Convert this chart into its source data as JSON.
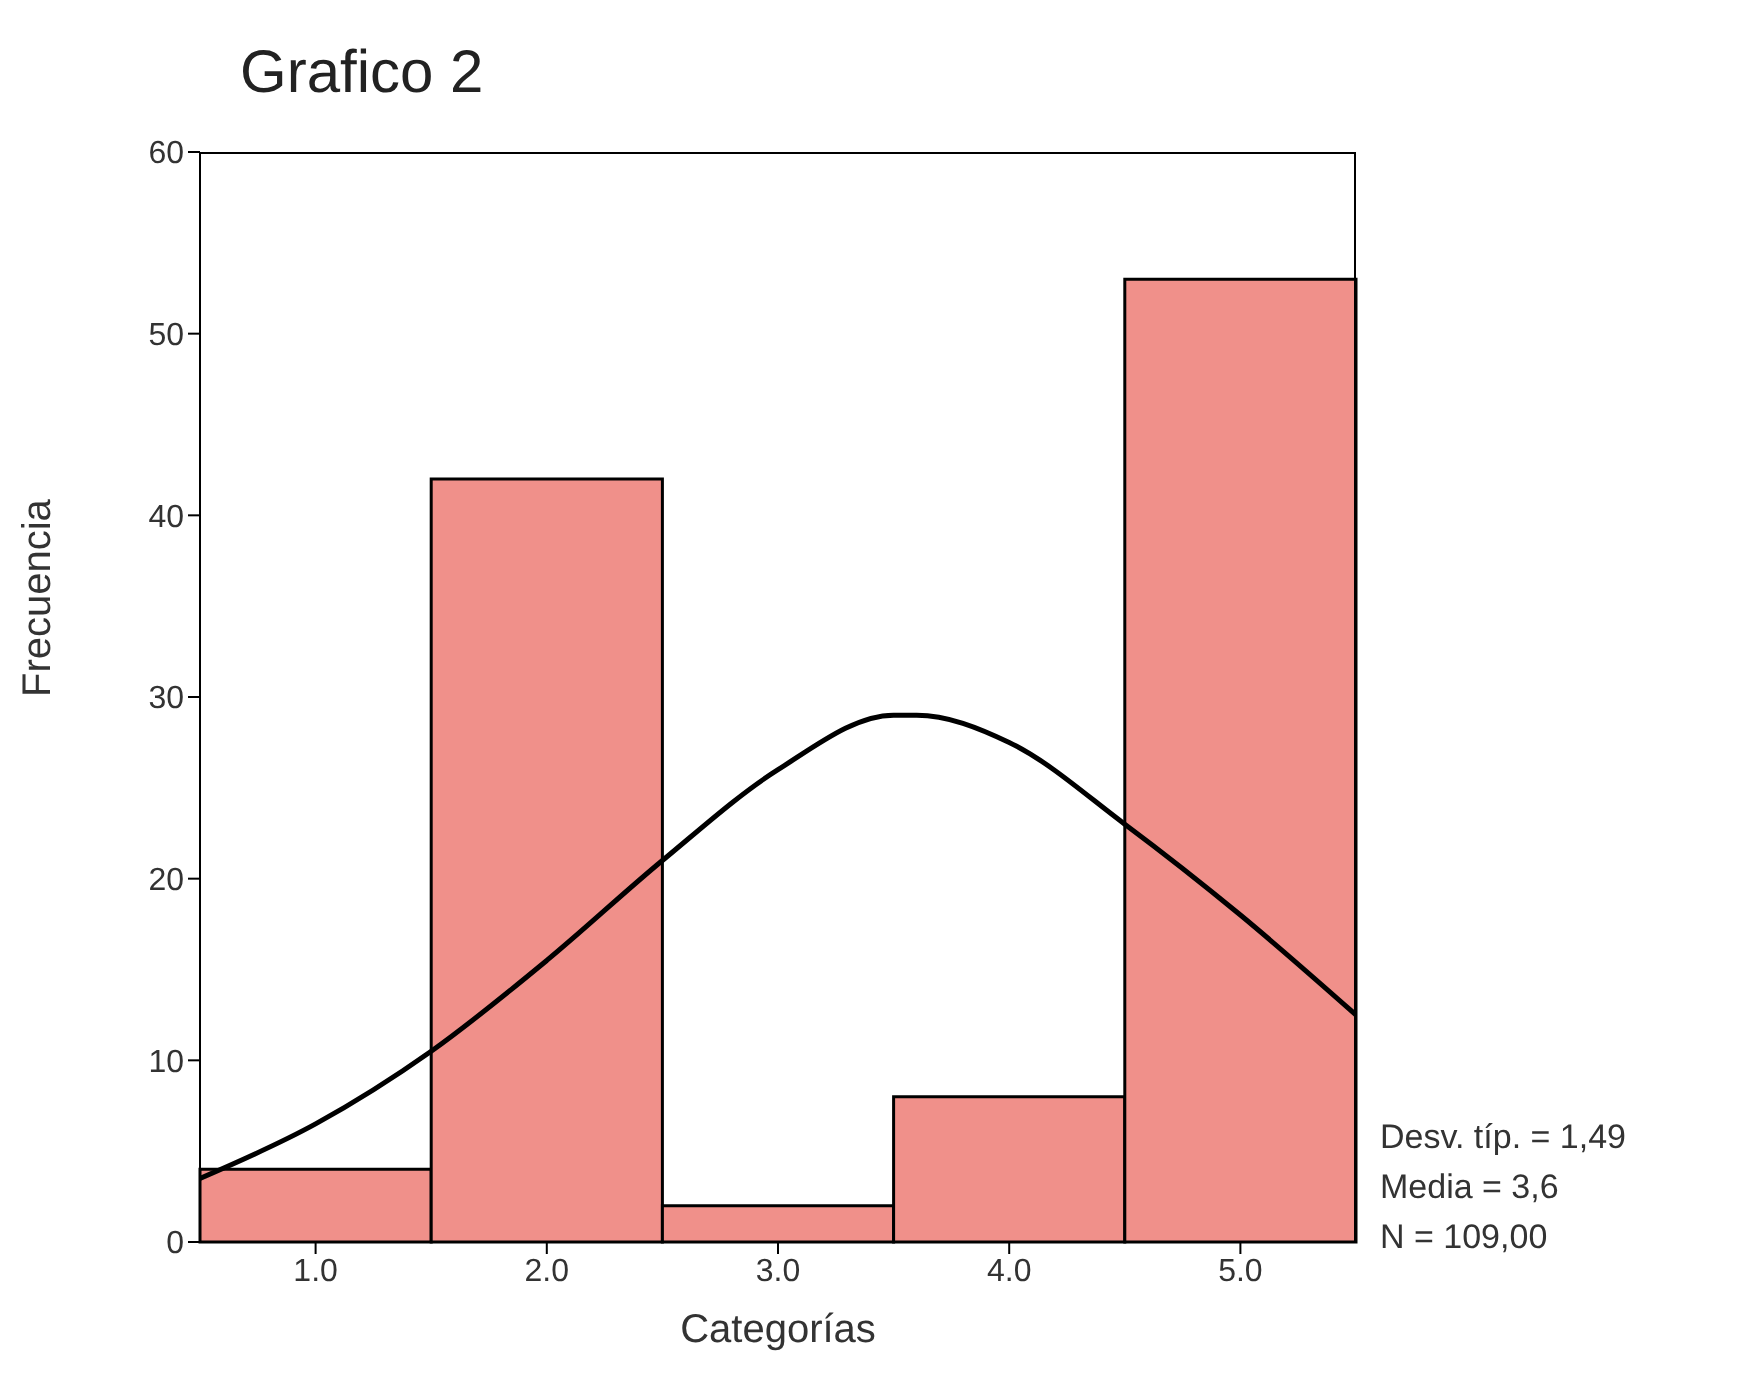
{
  "chart_data": {
    "type": "histogram",
    "title": "Grafico 2",
    "xlabel": "Categorías",
    "ylabel": "Frecuencia",
    "bins": [
      0.5,
      1.5,
      2.5,
      3.5,
      4.5,
      5.5
    ],
    "values": [
      4,
      42,
      2,
      8,
      53
    ],
    "color": "#f0908a",
    "series": [
      {
        "type": "line",
        "color": "#000000",
        "x": [
          0.5,
          1.0,
          1.5,
          2.0,
          2.5,
          3.0,
          3.5,
          3.6,
          4.0,
          4.5,
          5.0,
          5.5
        ],
        "values": [
          3.5,
          6.5,
          10.5,
          15.5,
          21,
          26,
          29,
          29,
          27.5,
          23,
          18,
          12.5
        ]
      }
    ],
    "xlim": [
      0.5,
      5.5
    ],
    "xticks": [
      {
        "value": 1,
        "label": "1.0"
      },
      {
        "value": 2,
        "label": "2.0"
      },
      {
        "value": 3,
        "label": "3.0"
      },
      {
        "value": 4,
        "label": "4.0"
      },
      {
        "value": 5,
        "label": "5.0"
      }
    ],
    "ylim": [
      0,
      60
    ],
    "yticks": [
      0,
      10,
      20,
      30,
      40,
      50,
      60
    ],
    "annotations": [
      "Desv. típ. = 1,49",
      "Media = 3,6",
      "N = 109,00"
    ]
  }
}
